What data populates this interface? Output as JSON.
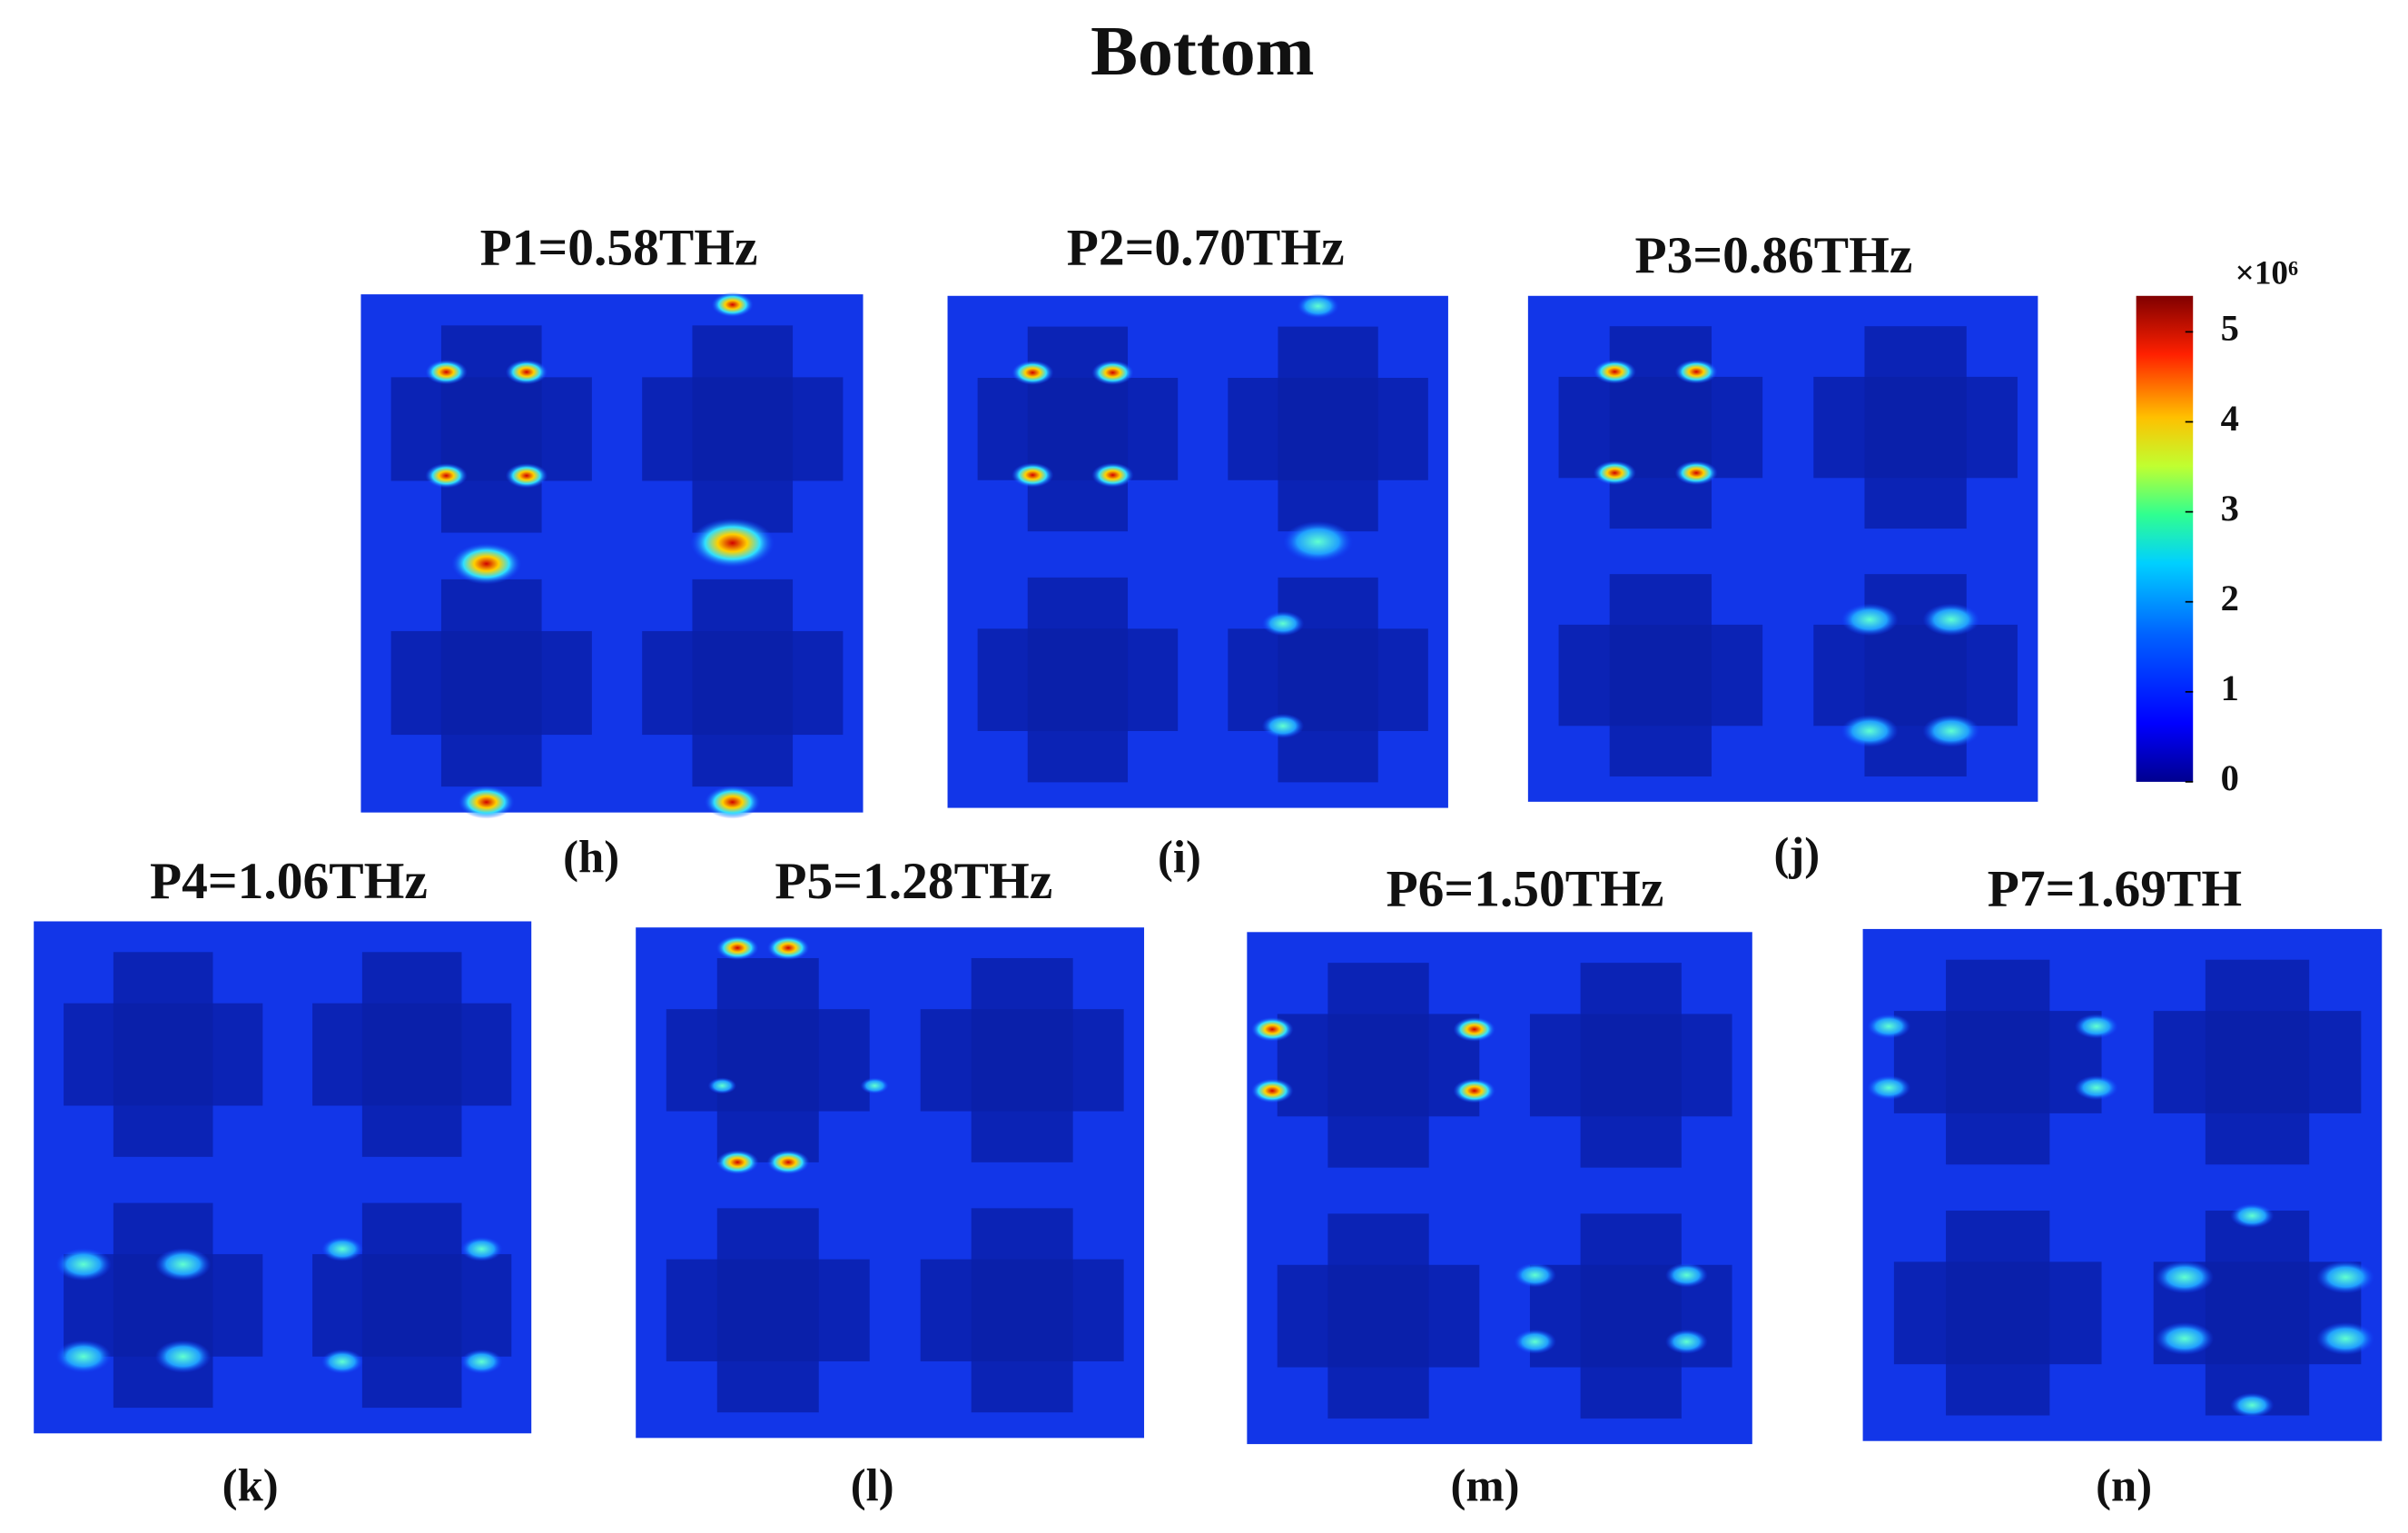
{
  "title": "Bottom",
  "panels": [
    {
      "title": "P1=0.58THz",
      "label": "(h)"
    },
    {
      "title": "P2=0.70THz",
      "label": "(i)"
    },
    {
      "title": "P3=0.86THz",
      "label": "(j)"
    },
    {
      "title": "P4=1.06THz",
      "label": "(k)"
    },
    {
      "title": "P5=1.28THz",
      "label": "(l)"
    },
    {
      "title": "P6=1.50THz",
      "label": "(m)"
    },
    {
      "title": "P7=1.69TH",
      "label": "(n)"
    }
  ],
  "colorbar": {
    "unit": "×10⁶",
    "lim": [
      0,
      5.4
    ],
    "ticks": [
      0,
      1,
      2,
      3,
      4,
      5
    ]
  }
}
